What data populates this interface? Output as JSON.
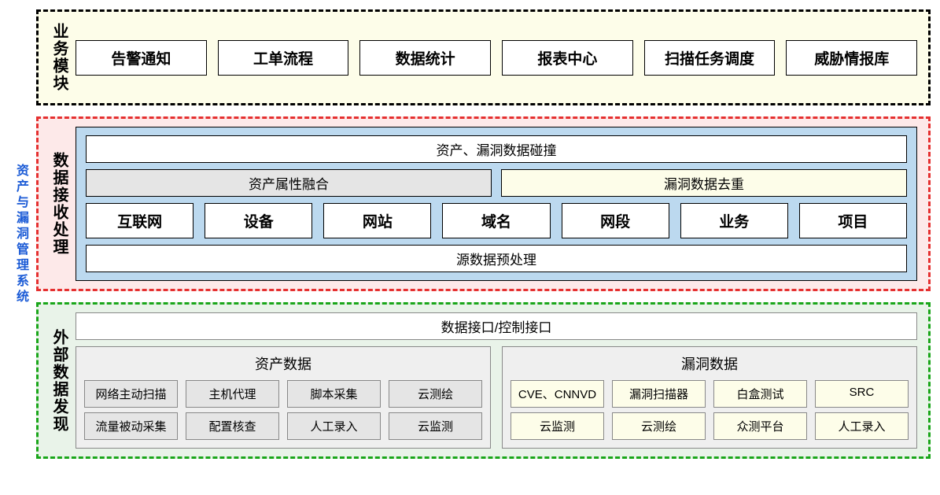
{
  "title": {
    "text": "资产与漏洞管理系统",
    "color": "#1b5bd6",
    "fontsize": 16
  },
  "layers": [
    {
      "id": "business",
      "label": "业务模块",
      "border_color": "#000000",
      "bg_color": "#fdfde9",
      "boxes": [
        "告警通知",
        "工单流程",
        "数据统计",
        "报表中心",
        "扫描任务调度",
        "威胁情报库"
      ],
      "box_bg": "#ffffff",
      "box_font": 19
    },
    {
      "id": "processing",
      "label": "数据接收处理",
      "border_color": "#e53030",
      "bg_color": "#fde9e9",
      "inner_bg": "#bcd9ef",
      "rows": {
        "top_bar": "资产、漏洞数据碰撞",
        "mid": [
          {
            "text": "资产属性融合",
            "bg": "#e5e5e5"
          },
          {
            "text": "漏洞数据去重",
            "bg": "#fdfde9"
          }
        ],
        "entities": [
          "互联网",
          "设备",
          "网站",
          "域名",
          "网段",
          "业务",
          "项目"
        ],
        "bottom_bar": "源数据预处理"
      }
    },
    {
      "id": "discovery",
      "label": "外部数据发现",
      "border_color": "#1aa61a",
      "bg_color": "#e9f3e9",
      "top_bar": "数据接口/控制接口",
      "groups": [
        {
          "title": "资产数据",
          "bg": "#efefef",
          "item_bg": "#e5e5e5",
          "rows": [
            [
              "网络主动扫描",
              "主机代理",
              "脚本采集",
              "云测绘"
            ],
            [
              "流量被动采集",
              "配置核查",
              "人工录入",
              "云监测"
            ]
          ]
        },
        {
          "title": "漏洞数据",
          "bg": "#efefef",
          "item_bg": "#fdfde9",
          "rows": [
            [
              "CVE、CNNVD",
              "漏洞扫描器",
              "白盒测试",
              "SRC"
            ],
            [
              "云监测",
              "云测绘",
              "众测平台",
              "人工录入"
            ]
          ]
        }
      ]
    }
  ]
}
